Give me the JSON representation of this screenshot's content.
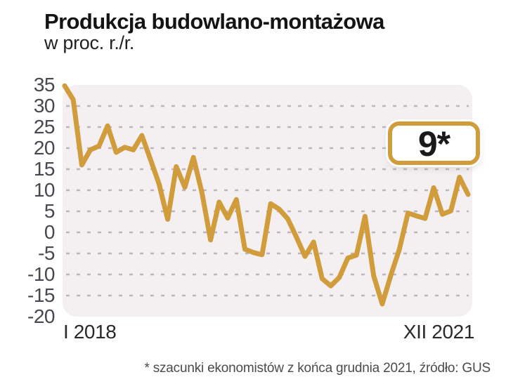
{
  "page": {
    "background": "#ffffff"
  },
  "header": {
    "title": "Produkcja budowlano-montażowa",
    "subtitle": "w proc. r./r."
  },
  "callout": {
    "value": "9*",
    "meaning": "estimated value for XII 2021"
  },
  "footnote": {
    "text": "* szacunki ekonomistów z końca grudnia 2021, źródło: GUS"
  },
  "colors": {
    "line": "#d19c3c",
    "plot_background": "#f4f0f2",
    "gridline": "#bdb5bd",
    "axis_text": "#47474f",
    "x_axis_text": "#2a2a2e",
    "title_text": "#141414",
    "footnote_text": "#4b4b4b",
    "callout_border": "#d19c3c",
    "callout_text": "#1a1a1a"
  },
  "chart_data": {
    "type": "line",
    "title": "Produkcja budowlano-montażowa",
    "ylabel": "w proc. r./r.",
    "x_start_label": "I 2018",
    "x_end_label": "XII 2021",
    "x": [
      "I 2018",
      "II 2018",
      "III 2018",
      "IV 2018",
      "V 2018",
      "VI 2018",
      "VII 2018",
      "VIII 2018",
      "IX 2018",
      "X 2018",
      "XI 2018",
      "XII 2018",
      "I 2019",
      "II 2019",
      "III 2019",
      "IV 2019",
      "V 2019",
      "VI 2019",
      "VII 2019",
      "VIII 2019",
      "IX 2019",
      "X 2019",
      "XI 2019",
      "XII 2019",
      "I 2020",
      "II 2020",
      "III 2020",
      "IV 2020",
      "V 2020",
      "VI 2020",
      "VII 2020",
      "VIII 2020",
      "IX 2020",
      "X 2020",
      "XI 2020",
      "XII 2020",
      "I 2021",
      "II 2021",
      "III 2021",
      "IV 2021",
      "V 2021",
      "VI 2021",
      "VII 2021",
      "VIII 2021",
      "IX 2021",
      "X 2021",
      "XI 2021",
      "XII 2021"
    ],
    "values": [
      34.8,
      31.5,
      16.0,
      19.6,
      20.5,
      25.3,
      19.0,
      20.2,
      19.6,
      23.0,
      17.3,
      11.5,
      3.1,
      15.6,
      10.7,
      17.8,
      9.4,
      -1.8,
      7.2,
      3.4,
      7.8,
      -4.0,
      -4.8,
      -5.3,
      6.8,
      5.5,
      3.2,
      -1.1,
      -5.7,
      -2.3,
      -11.0,
      -12.7,
      -10.7,
      -6.1,
      -5.4,
      3.8,
      -10.3,
      -17.0,
      -10.2,
      -4.0,
      4.6,
      3.9,
      3.3,
      10.6,
      4.3,
      5.1,
      13.1,
      9.0
    ],
    "ylim": [
      -20,
      35
    ],
    "yticks": [
      35,
      30,
      25,
      20,
      15,
      10,
      5,
      0,
      -5,
      -10,
      -15,
      -20
    ],
    "gridline_values": [
      30,
      25,
      20,
      15,
      10,
      5,
      0,
      -5,
      -10,
      -15
    ],
    "grid": "horizontal dashed",
    "legend": "none",
    "annotation": {
      "label": "9*",
      "month": "XII 2021",
      "value": 9,
      "note": "estimate marked with asterisk"
    }
  }
}
